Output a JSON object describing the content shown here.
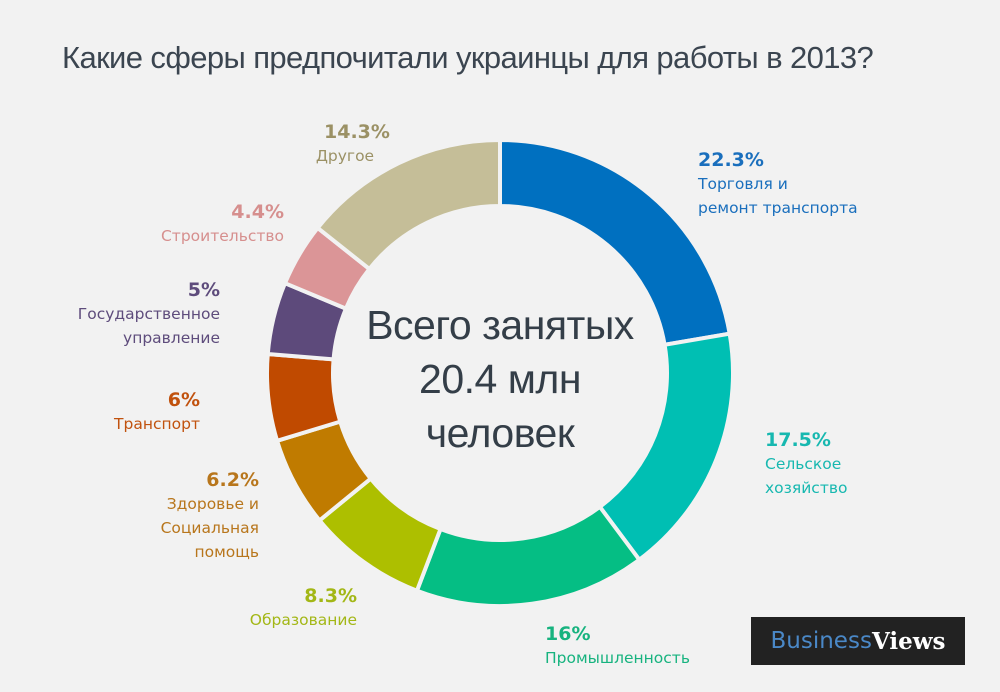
{
  "title": "Какие сферы предпочитали украинцы для работы в 2013?",
  "center": {
    "line1": "Всего занятых",
    "line2": "20.4 млн",
    "line3": "человек"
  },
  "logo": {
    "part1": "Business",
    "part2": "Views"
  },
  "chart_data": {
    "type": "pie",
    "variant": "donut",
    "title": "Какие сферы предпочитали украинцы для работы в 2013?",
    "center_label": "Всего занятых 20.4 млн человек",
    "unit": "%",
    "start_angle": "12 o'clock, clockwise",
    "categories": [
      "Торговля и ремонт транспорта",
      "Сельское хозяйство",
      "Промышленность",
      "Образование",
      "Здоровье и Социальная помощь",
      "Транспорт",
      "Государственное управление",
      "Строительство",
      "Другое"
    ],
    "values": [
      22.3,
      17.5,
      16,
      8.3,
      6.2,
      6,
      5,
      4.4,
      14.3
    ],
    "colors": [
      "#0070c0",
      "#00bfb3",
      "#05be84",
      "#adbf00",
      "#c07b00",
      "#c04a00",
      "#5d4a7b",
      "#db9597",
      "#c5be98"
    ],
    "labels": [
      {
        "pct": "22.3%",
        "name": "Торговля  и\nремонт  транспорта",
        "color": "#1a6fbd"
      },
      {
        "pct": "17.5%",
        "name": "Сельское\nхозяйство",
        "color": "#17b8b0"
      },
      {
        "pct": "16%",
        "name": "Промышленность",
        "color": "#17b37f"
      },
      {
        "pct": "8.3%",
        "name": "Образование",
        "color": "#a3b716"
      },
      {
        "pct": "6.2%",
        "name": "Здоровье и\nСоциальная\nпомощь",
        "color": "#b8761c"
      },
      {
        "pct": "6%",
        "name": "Транспорт",
        "color": "#c1520e"
      },
      {
        "pct": "5%",
        "name": "Государственное\nуправление",
        "color": "#5e4c7c"
      },
      {
        "pct": "4.4%",
        "name": "Строительство",
        "color": "#d68f8e"
      },
      {
        "pct": "14.3%",
        "name": "Другое",
        "color": "#9b9165"
      }
    ]
  }
}
